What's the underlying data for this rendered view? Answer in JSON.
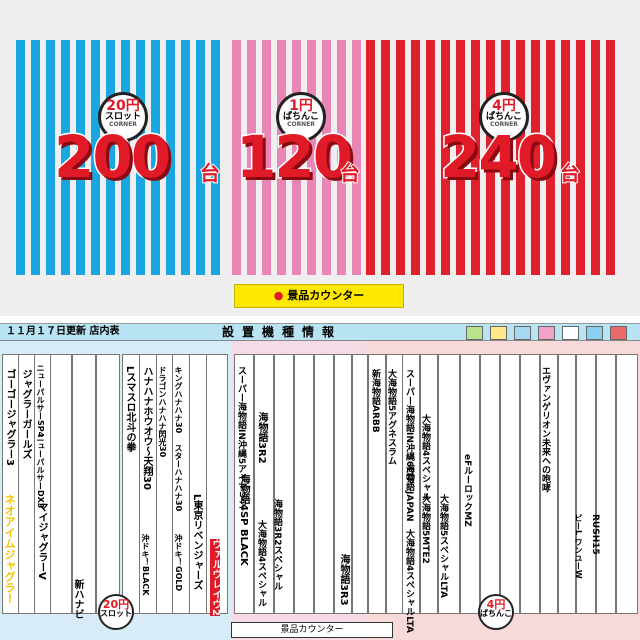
{
  "overview": {
    "slot20": {
      "price": "20円",
      "type": "スロット",
      "corner": "CORNER",
      "count": "200",
      "unit": "台",
      "color": "#1aa7e1"
    },
    "pachinko1": {
      "price": "1円",
      "type": "ぱちんこ",
      "corner": "CORNER",
      "count": "120",
      "unit": "台",
      "color": "#ea86b5"
    },
    "pachinko4": {
      "price": "4円",
      "type": "ぱちんこ",
      "corner": "CORNER",
      "count": "240",
      "unit": "台",
      "color": "#e0202c"
    },
    "counter_label": "景品カウンター",
    "counter_bullet": "●"
  },
  "floor": {
    "date": "１１月１７日更新 店内表",
    "title": "設置機種情報",
    "legend": [
      {
        "label": "",
        "color": "#b5e48c"
      },
      {
        "label": "",
        "color": "#ffe98a"
      },
      {
        "label": "",
        "color": "#a6d8f2"
      },
      {
        "label": "",
        "color": "#f2a3c8"
      },
      {
        "label": "",
        "color": "#ffffff"
      },
      {
        "label": "",
        "color": "#8ad0f0"
      },
      {
        "label": "",
        "color": "#e86a6a"
      }
    ],
    "machines": {
      "goal": "ゴーゴージャグラー3",
      "juggler": "ジャグラーガールズ",
      "newpulsar": "ニューパルサーSP4",
      "newpulsar2": "ニューパルサーDX3",
      "myjuggler": "マイジャグラーV",
      "neoi": "ネオアイムジャグラー",
      "shinhanahana": "新ハナビ",
      "hokuto": "Lスマスロ北斗の拳",
      "hanahou": "ハナハナホウオウ〜天翔30",
      "dragon": "ドラゴンハナハナ閃光30",
      "king": "キングハナハナ30",
      "star": "スターハナハナ30",
      "okidoki": "沖ドキ！BLACK",
      "okidoki2": "沖ドキ！GOLD",
      "revenge": "L東京リベンジャーズ",
      "valve": "ヴァルヴレイヴ2",
      "super": "スーパー海物語IN沖縄5アイマリン",
      "umi": "海物語3R2",
      "umi4": "海物語4SP BLACK",
      "daikaimono": "大海物語4スペシャル",
      "umi3r2sp": "海物語3R2スペシャル",
      "shinumi": "新海物語ARBB",
      "umijapan": "海物語JAPAN",
      "umiagnes": "大海物語5アグネスラム",
      "superumi": "スーパー海物語IN沖縄6LTP",
      "daiumi4sp": "大海物語4スペシャル",
      "daiumi5m": "大海物語5MTE2",
      "daiumi5sp": "大海物語5スペシャルLTA",
      "daiumi4lta": "大海物語4スペシャルLTA",
      "umi3r3": "海物語3R3",
      "eva": "エヴァンゲリオン未来への咆哮",
      "ef": "eFルーロックMZ",
      "kurukuru": "ビーL ワンユーW",
      "rush": "RUSH15"
    },
    "counter_label": "景品カウンター",
    "slot_badge": {
      "price": "20円",
      "type": "スロット"
    },
    "pachi_badge": {
      "price": "4円",
      "type": "ぱちんこ"
    }
  }
}
